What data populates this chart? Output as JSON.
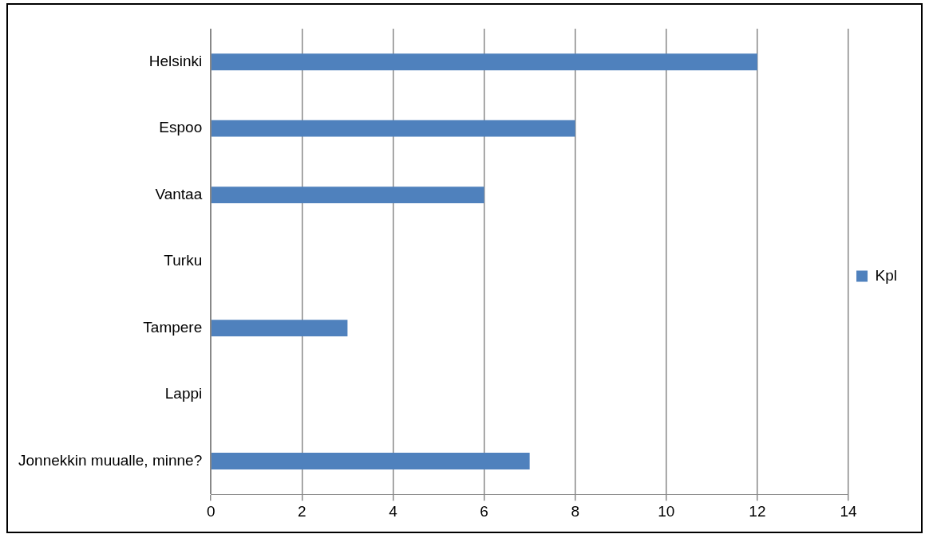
{
  "chart_data": {
    "type": "bar",
    "orientation": "horizontal",
    "categories": [
      "Helsinki",
      "Espoo",
      "Vantaa",
      "Turku",
      "Tampere",
      "Lappi",
      "Jonnekkin muualle, minne?"
    ],
    "series": [
      {
        "name": "Kpl",
        "color": "#4f81bd",
        "values": [
          12,
          8,
          6,
          0,
          3,
          0,
          7
        ]
      }
    ],
    "xlim": [
      0,
      14
    ],
    "xticks": [
      0,
      2,
      4,
      6,
      8,
      10,
      12,
      14
    ],
    "grid": "x",
    "legend": "right"
  }
}
